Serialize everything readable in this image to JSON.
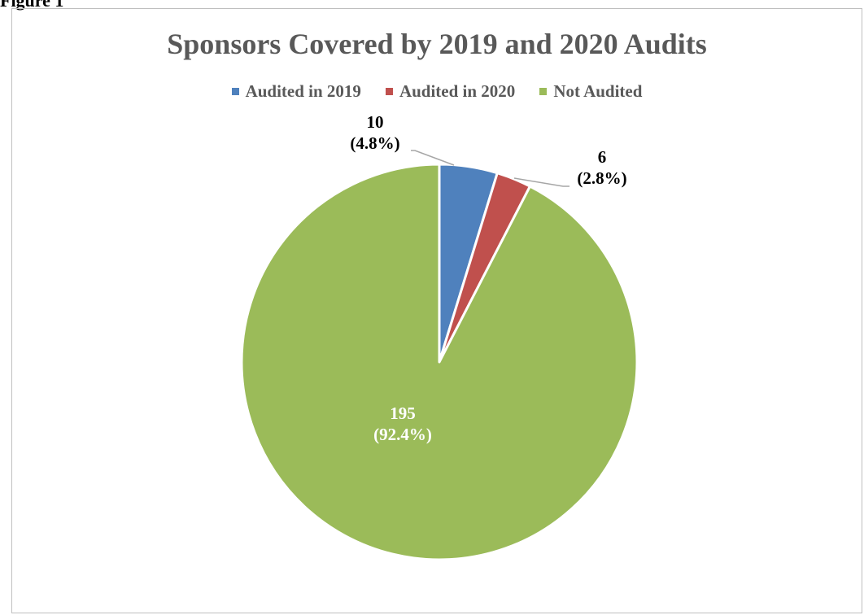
{
  "figure_label": "Figure 1",
  "chart_data": {
    "type": "pie",
    "title": "Sponsors Covered by 2019 and 2020 Audits",
    "legend_position": "top",
    "slices": [
      {
        "name": "Audited in 2019",
        "value": 10,
        "percent_label": "(4.8%)",
        "color": "#4f81bd",
        "label_color": "#000000"
      },
      {
        "name": "Audited in 2020",
        "value": 6,
        "percent_label": "(2.8%)",
        "color": "#c0504d",
        "label_color": "#000000"
      },
      {
        "name": "Not Audited",
        "value": 195,
        "percent_label": "(92.4%)",
        "color": "#9bbb59",
        "label_color": "#ffffff"
      }
    ],
    "start_angle": "12 o'clock",
    "direction": "clockwise"
  }
}
